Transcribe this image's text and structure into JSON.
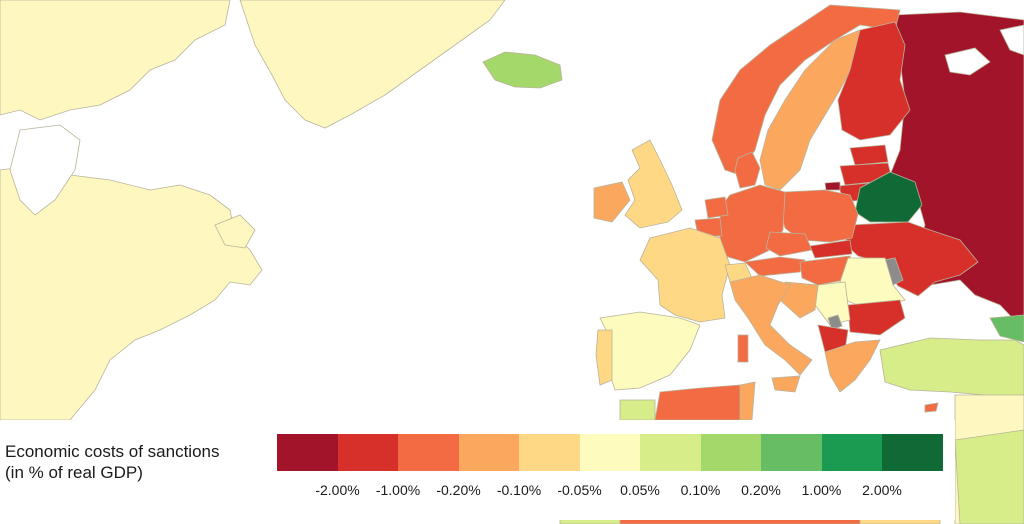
{
  "legend": {
    "title_line1": "Economic costs of sanctions",
    "title_line2": "(in % of real GDP)",
    "colors": [
      "#a11429",
      "#d7302a",
      "#f26b43",
      "#fba85e",
      "#fed884",
      "#fdfbbd",
      "#d6ed89",
      "#a5d86a",
      "#66bd63",
      "#1b9a52",
      "#0f6a35"
    ],
    "ticks": [
      "-2.00%",
      "-1.00%",
      "-0.20%",
      "-0.10%",
      "-0.05%",
      "0.05%",
      "0.10%",
      "0.20%",
      "1.00%",
      "2.00%"
    ]
  },
  "map_colors": {
    "ocean": "#ffffff",
    "no_data": "#fef8c0",
    "border": "#b9b39a",
    "grey": "#8c8c8c"
  }
}
